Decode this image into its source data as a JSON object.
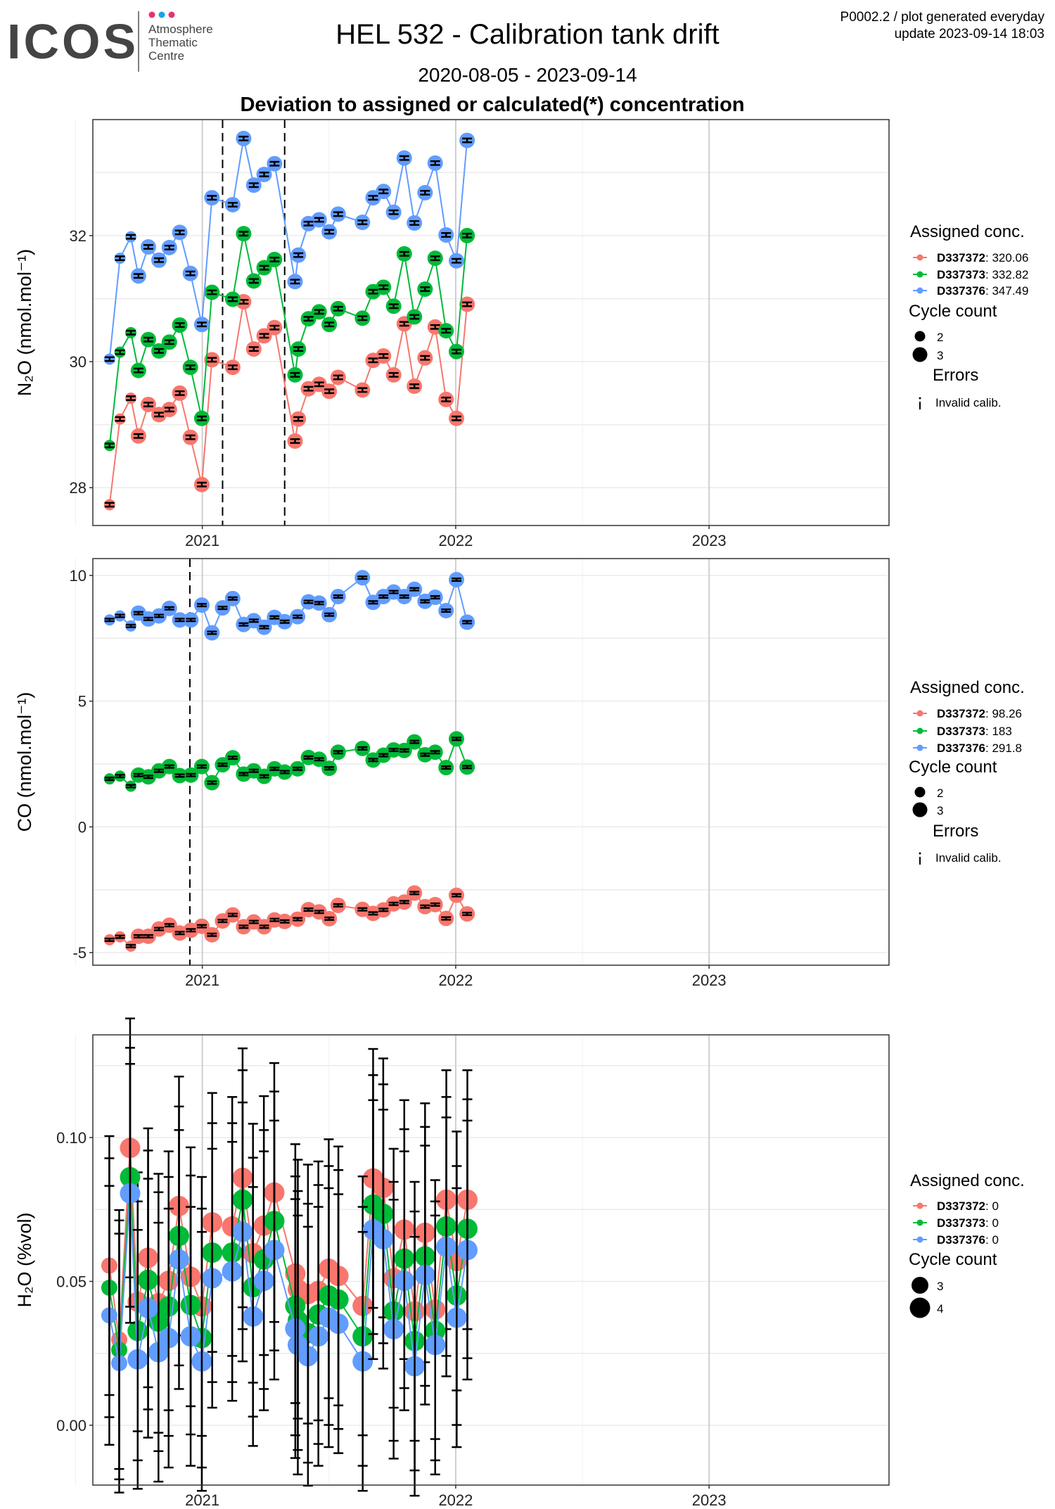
{
  "header": {
    "logo_text": "ICOS",
    "logo_sub": [
      "Atmosphere",
      "Thematic",
      "Centre"
    ],
    "title": "HEL 532 - Calibration tank drift",
    "date_range": "2020-08-05 - 2023-09-14",
    "subtitle": "Deviation to assigned or calculated(*) concentration",
    "meta_line1": "P0002.2 / plot generated everyday",
    "meta_line2": "update  2023-09-14 18:03"
  },
  "colors": {
    "D337372": "#F8766D",
    "D337373": "#00BA38",
    "D337376": "#619CFF"
  },
  "legend_labels": {
    "assigned": "Assigned conc.",
    "cycle": "Cycle count",
    "errors": "Errors",
    "invalid": "Invalid calib."
  },
  "chart_data": [
    {
      "type": "line",
      "ylabel": "N₂O (nmol.mol⁻¹)",
      "ylim": [
        27.4,
        33.84
      ],
      "xlim": [
        2020.568,
        2023.71
      ],
      "yticks": [
        "28",
        "30",
        "32"
      ],
      "xticks": [
        "2021",
        "2022",
        "2023"
      ],
      "vlines": [
        2021.08,
        2021.325
      ],
      "err": 0.03,
      "cycle_levels": [
        "2",
        "3"
      ],
      "show_errors_legend": true,
      "x": [
        2020.634,
        2020.675,
        2020.718,
        2020.748,
        2020.787,
        2020.829,
        2020.87,
        2020.911,
        2020.953,
        2020.998,
        2021.038,
        2021.12,
        2021.163,
        2021.203,
        2021.244,
        2021.285,
        2021.366,
        2021.379,
        2021.419,
        2021.461,
        2021.501,
        2021.536,
        2021.632,
        2021.674,
        2021.715,
        2021.755,
        2021.797,
        2021.837,
        2021.879,
        2021.919,
        2021.962,
        2022.003,
        2022.045
      ],
      "cycles": [
        2,
        2,
        2,
        3,
        3,
        3,
        3,
        3,
        3,
        3,
        3,
        3,
        3,
        3,
        3,
        3,
        3,
        3,
        3,
        3,
        3,
        3,
        3,
        3,
        3,
        3,
        3,
        3,
        3,
        3,
        3,
        3,
        3
      ],
      "series": [
        {
          "name": "D337372",
          "assigned": "320.06",
          "y": [
            27.73,
            29.09,
            29.42,
            28.82,
            29.32,
            29.16,
            29.24,
            29.5,
            28.8,
            28.05,
            30.03,
            29.91,
            30.95,
            30.2,
            30.41,
            30.54,
            28.74,
            29.09,
            29.57,
            29.64,
            29.53,
            29.75,
            29.55,
            30.02,
            30.09,
            29.79,
            30.6,
            29.61,
            30.06,
            30.55,
            29.4,
            29.1,
            30.91
          ]
        },
        {
          "name": "D337373",
          "assigned": "332.82",
          "y": [
            28.67,
            30.15,
            30.46,
            29.86,
            30.35,
            30.17,
            30.31,
            30.58,
            29.91,
            29.1,
            31.1,
            30.99,
            32.03,
            31.28,
            31.49,
            31.62,
            29.79,
            30.2,
            30.68,
            30.79,
            30.59,
            30.84,
            30.69,
            31.11,
            31.18,
            30.88,
            31.71,
            30.71,
            31.15,
            31.64,
            30.49,
            30.16,
            32.0
          ]
        },
        {
          "name": "D337376",
          "assigned": "347.49",
          "y": [
            30.04,
            31.64,
            31.98,
            31.36,
            31.82,
            31.61,
            31.81,
            32.05,
            31.4,
            30.59,
            32.6,
            32.49,
            33.54,
            32.8,
            32.97,
            33.14,
            31.27,
            31.69,
            32.19,
            32.25,
            32.06,
            32.34,
            32.21,
            32.6,
            32.7,
            32.37,
            33.23,
            32.2,
            32.68,
            33.15,
            32.01,
            31.6,
            33.51
          ]
        }
      ]
    },
    {
      "type": "line",
      "ylabel": "CO (nmol.mol⁻¹)",
      "ylim": [
        -5.5,
        10.67
      ],
      "xlim": [
        2020.568,
        2023.71
      ],
      "yticks": [
        "-5",
        "0",
        "5",
        "10"
      ],
      "xticks": [
        "2021",
        "2022",
        "2023"
      ],
      "vlines": [
        2020.951
      ],
      "err": 0.05,
      "cycle_levels": [
        "2",
        "3"
      ],
      "show_errors_legend": true,
      "x": [
        2020.634,
        2020.675,
        2020.718,
        2020.748,
        2020.787,
        2020.829,
        2020.87,
        2020.911,
        2020.955,
        2020.998,
        2021.038,
        2021.08,
        2021.12,
        2021.163,
        2021.203,
        2021.244,
        2021.285,
        2021.325,
        2021.376,
        2021.419,
        2021.461,
        2021.501,
        2021.536,
        2021.632,
        2021.674,
        2021.715,
        2021.755,
        2021.797,
        2021.837,
        2021.879,
        2021.919,
        2021.962,
        2022.003,
        2022.045
      ],
      "cycles": [
        2,
        2,
        2,
        3,
        3,
        3,
        3,
        3,
        3,
        3,
        3,
        3,
        3,
        3,
        3,
        3,
        3,
        3,
        3,
        3,
        3,
        3,
        3,
        3,
        3,
        3,
        3,
        3,
        3,
        3,
        3,
        3,
        3,
        3
      ],
      "series": [
        {
          "name": "D337372",
          "assigned": "98.26",
          "y": [
            -4.49,
            -4.37,
            -4.74,
            -4.35,
            -4.35,
            -4.06,
            -3.91,
            -4.22,
            -4.11,
            -3.95,
            -4.29,
            -3.74,
            -3.5,
            -3.97,
            -3.78,
            -3.97,
            -3.7,
            -3.76,
            -3.67,
            -3.29,
            -3.38,
            -3.65,
            -3.12,
            -3.28,
            -3.44,
            -3.3,
            -3.06,
            -2.99,
            -2.63,
            -3.17,
            -3.09,
            -3.64,
            -2.72,
            -3.46
          ]
        },
        {
          "name": "D337373",
          "assigned": "183",
          "y": [
            1.91,
            2.02,
            1.62,
            2.06,
            1.99,
            2.23,
            2.4,
            2.04,
            2.06,
            2.4,
            1.76,
            2.47,
            2.75,
            2.1,
            2.23,
            2.01,
            2.31,
            2.18,
            2.31,
            2.76,
            2.69,
            2.33,
            2.97,
            3.12,
            2.66,
            2.85,
            3.06,
            3.04,
            3.38,
            2.87,
            2.97,
            2.36,
            3.5,
            2.38
          ]
        },
        {
          "name": "D337376",
          "assigned": "291.8",
          "y": [
            8.23,
            8.39,
            7.99,
            8.5,
            8.27,
            8.39,
            8.69,
            8.23,
            8.23,
            8.82,
            7.72,
            8.71,
            9.08,
            8.05,
            8.2,
            7.94,
            8.33,
            8.16,
            8.36,
            8.95,
            8.9,
            8.44,
            9.16,
            9.91,
            8.93,
            9.16,
            9.34,
            9.16,
            9.45,
            8.97,
            9.13,
            8.6,
            9.83,
            8.14
          ]
        }
      ]
    },
    {
      "type": "line",
      "ylabel": "H₂O (%vol)",
      "ylim": [
        -0.0208,
        0.1357
      ],
      "xlim": [
        2020.568,
        2023.71
      ],
      "yticks": [
        "0.00",
        "0.05",
        "0.10"
      ],
      "xticks": [
        "2021",
        "2022",
        "2023"
      ],
      "vlines": [],
      "err": 0.045,
      "cycle_levels": [
        "3",
        "4"
      ],
      "show_errors_legend": false,
      "x": [
        2020.633,
        2020.672,
        2020.715,
        2020.745,
        2020.786,
        2020.827,
        2020.867,
        2020.908,
        2020.954,
        2020.998,
        2021.039,
        2021.118,
        2021.159,
        2021.2,
        2021.243,
        2021.284,
        2021.367,
        2021.377,
        2021.417,
        2021.458,
        2021.499,
        2021.537,
        2021.633,
        2021.674,
        2021.714,
        2021.755,
        2021.797,
        2021.838,
        2021.879,
        2021.919,
        2021.963,
        2022.004,
        2022.046
      ],
      "cycles": [
        3,
        3,
        4,
        4,
        4,
        4,
        4,
        4,
        4,
        4,
        4,
        4,
        4,
        4,
        4,
        4,
        4,
        4,
        4,
        4,
        4,
        4,
        4,
        4,
        4,
        4,
        4,
        4,
        4,
        4,
        4,
        4,
        4
      ],
      "series": [
        {
          "name": "D337372",
          "assigned": "0",
          "y": [
            0.0555,
            0.0298,
            0.0964,
            0.0429,
            0.0582,
            0.0424,
            0.0502,
            0.0762,
            0.0516,
            0.0413,
            0.0705,
            0.0691,
            0.086,
            0.0598,
            0.0694,
            0.0809,
            0.0527,
            0.0473,
            0.0456,
            0.0467,
            0.0544,
            0.0519,
            0.0415,
            0.0858,
            0.0825,
            0.0511,
            0.068,
            0.0396,
            0.0669,
            0.0402,
            0.0784,
            0.0571,
            0.0784
          ]
        },
        {
          "name": "D337373",
          "assigned": "0",
          "y": [
            0.0478,
            0.0262,
            0.0862,
            0.0328,
            0.0505,
            0.036,
            0.0413,
            0.0658,
            0.0418,
            0.0303,
            0.06,
            0.06,
            0.0784,
            0.048,
            0.0576,
            0.071,
            0.0415,
            0.0364,
            0.032,
            0.0385,
            0.0451,
            0.0437,
            0.0309,
            0.0767,
            0.0735,
            0.0396,
            0.0579,
            0.0293,
            0.0587,
            0.0328,
            0.0691,
            0.0451,
            0.0683
          ]
        },
        {
          "name": "D337376",
          "assigned": "0",
          "y": [
            0.0382,
            0.0216,
            0.0806,
            0.0229,
            0.0407,
            0.0254,
            0.0303,
            0.0576,
            0.0309,
            0.0222,
            0.0511,
            0.0535,
            0.0672,
            0.0378,
            0.0502,
            0.0609,
            0.0336,
            0.0279,
            0.024,
            0.0309,
            0.0374,
            0.0353,
            0.0222,
            0.068,
            0.0647,
            0.0334,
            0.0502,
            0.0205,
            0.0522,
            0.0279,
            0.062,
            0.0374,
            0.0609
          ]
        }
      ]
    }
  ]
}
